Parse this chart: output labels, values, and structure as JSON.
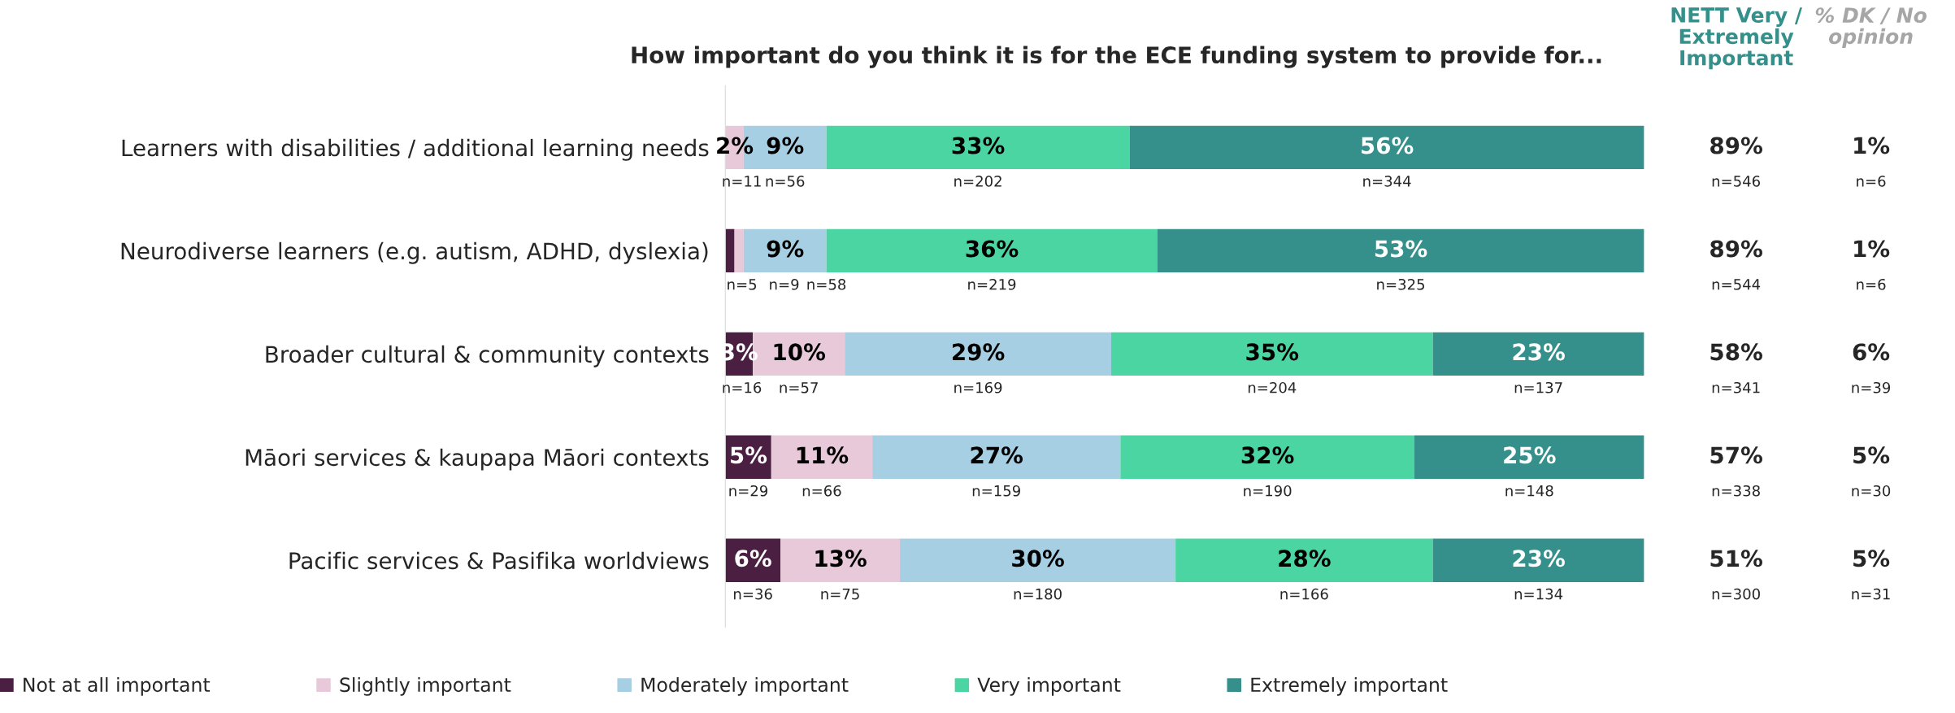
{
  "chart_data": [
    {
      "type": "bar",
      "orientation": "horizontal",
      "stacked": true,
      "title": "How important do you think it is for the ECE funding system to provide for...",
      "categories": [
        "Learners with disabilities / additional learning needs",
        "Neurodiverse learners (e.g. autism, ADHD, dyslexia)",
        "Broader cultural & community contexts",
        "Māori services & kaupapa Māori contexts",
        "Pacific services & Pasifika worldviews"
      ],
      "series": [
        {
          "name": "Not at all important",
          "color": "#4a1f42",
          "values": [
            0,
            1,
            3,
            5,
            6
          ],
          "value_labels": [
            null,
            null,
            "3%",
            "5%",
            "6%"
          ]
        },
        {
          "name": "Slightly important",
          "color": "#e8c9d9",
          "values": [
            2,
            1,
            10,
            11,
            13
          ],
          "value_labels": [
            "2%",
            null,
            "10%",
            "11%",
            "13%"
          ]
        },
        {
          "name": "Moderately important",
          "color": "#a7cfe3",
          "values": [
            9,
            9,
            29,
            27,
            30
          ],
          "value_labels": [
            "9%",
            "9%",
            "29%",
            "27%",
            "30%"
          ]
        },
        {
          "name": "Very important",
          "color": "#4bd5a2",
          "values": [
            33,
            36,
            35,
            32,
            28
          ],
          "value_labels": [
            "33%",
            "36%",
            "35%",
            "32%",
            "28%"
          ]
        },
        {
          "name": "Extremely important",
          "color": "#35908b",
          "values": [
            56,
            53,
            23,
            25,
            23
          ],
          "value_labels": [
            "56%",
            "53%",
            "23%",
            "25%",
            "23%"
          ]
        }
      ],
      "annotations": [
        "n=11",
        "n=56",
        "n=202",
        "n=344",
        "n=5",
        "n=9",
        "n=58",
        "n=219",
        "n=325",
        "n=16",
        "n=57",
        "n=169",
        "n=204",
        "n=137",
        "n=29",
        "n=66",
        "n=159",
        "n=190",
        "n=148",
        "n=36",
        "n=75",
        "n=180",
        "n=166",
        "n=134"
      ],
      "xlim": [
        0,
        100
      ],
      "tick_labels": "y",
      "grid": false,
      "legend": "bottom"
    },
    {
      "type": "other",
      "annotations": [
        "NETT Very / Extremely Important",
        "% DK / No opinion",
        "89%\nn=546",
        "1%\nn=6",
        "89%\nn=544",
        "1%\nn=6",
        "58%\nn=341",
        "6%\nn=39",
        "57%\nn=338",
        "5%\nn=30",
        "51%\nn=300",
        "5%\nn=31"
      ]
    }
  ]
}
